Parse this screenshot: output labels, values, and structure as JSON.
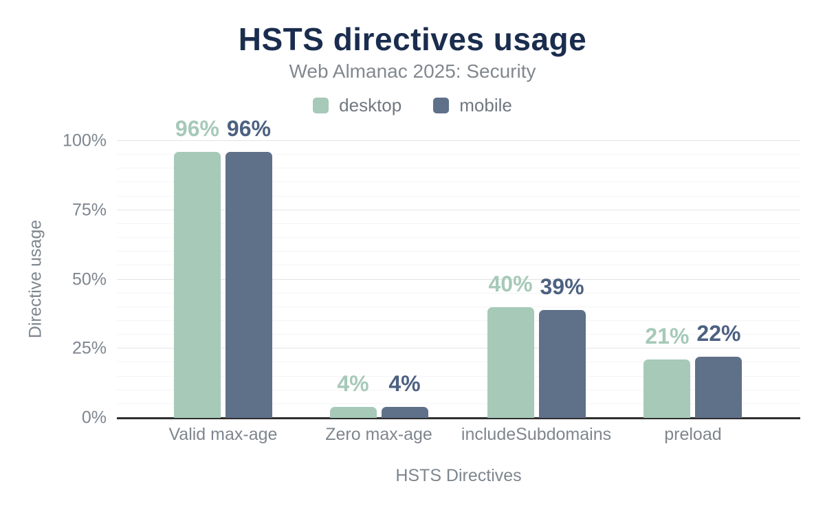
{
  "chart_data": {
    "type": "bar",
    "title": "HSTS directives usage",
    "subtitle": "Web Almanac 2025: Security",
    "xlabel": "HSTS Directives",
    "ylabel": "Directive usage",
    "ylim": [
      0,
      100
    ],
    "grid": true,
    "legend_position": "top",
    "minor_tick_step": 5,
    "major_tick_step": 25,
    "y_ticks": [
      {
        "value": 0,
        "label": "0%"
      },
      {
        "value": 25,
        "label": "25%"
      },
      {
        "value": 50,
        "label": "50%"
      },
      {
        "value": 75,
        "label": "75%"
      },
      {
        "value": 100,
        "label": "100%"
      }
    ],
    "categories": [
      "Valid max-age",
      "Zero max-age",
      "includeSubdomains",
      "preload"
    ],
    "series": [
      {
        "name": "desktop",
        "color": "#a6c9b8",
        "label_color": "#a6c9b8",
        "values": [
          96,
          4,
          40,
          21
        ],
        "value_labels": [
          "96%",
          "4%",
          "40%",
          "21%"
        ]
      },
      {
        "name": "mobile",
        "color": "#5f7089",
        "label_color": "#4d6181",
        "values": [
          96,
          4,
          39,
          22
        ],
        "value_labels": [
          "96%",
          "4%",
          "39%",
          "22%"
        ]
      }
    ],
    "colors": {
      "title": "#1b2d4e",
      "subtitle": "#82888e",
      "axis_text": "#7e868e",
      "legend_text": "#6f7880",
      "axis_line": "#2e2e2e",
      "grid_major": "#e3e3e3",
      "grid_minor": "#f4f4f4",
      "background": "#ffffff"
    }
  }
}
